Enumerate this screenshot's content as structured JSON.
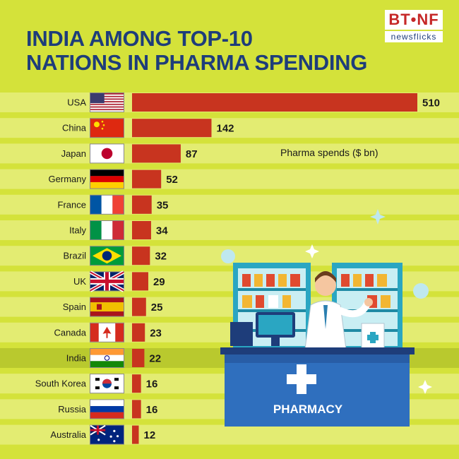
{
  "header": {
    "title_line1": "INDIA AMONG TOP-10",
    "title_line2": "NATIONS IN PHARMA SPENDING",
    "logo_top": "BT•NF",
    "logo_bottom": "newsflicks"
  },
  "colors": {
    "background": "#d4e23a",
    "stripe": "#e3ec72",
    "highlight_stripe": "#b9c92e",
    "bar": "#c8341f",
    "title": "#1e3d7a"
  },
  "chart_data": {
    "type": "bar",
    "orientation": "horizontal",
    "categories": [
      "USA",
      "China",
      "Japan",
      "Germany",
      "France",
      "Italy",
      "Brazil",
      "UK",
      "Spain",
      "Canada",
      "India",
      "South Korea",
      "Russia",
      "Australia"
    ],
    "values": [
      510,
      142,
      87,
      52,
      35,
      34,
      32,
      29,
      25,
      23,
      22,
      16,
      16,
      12
    ],
    "unit_label": "Pharma spends ($ bn)",
    "highlighted_category": "India",
    "flag_icons": [
      "us-flag-icon",
      "china-flag-icon",
      "japan-flag-icon",
      "germany-flag-icon",
      "france-flag-icon",
      "italy-flag-icon",
      "brazil-flag-icon",
      "uk-flag-icon",
      "spain-flag-icon",
      "canada-flag-icon",
      "india-flag-icon",
      "south-korea-flag-icon",
      "russia-flag-icon",
      "australia-flag-icon"
    ]
  },
  "illustration": {
    "counter_label": "PHARMACY"
  }
}
